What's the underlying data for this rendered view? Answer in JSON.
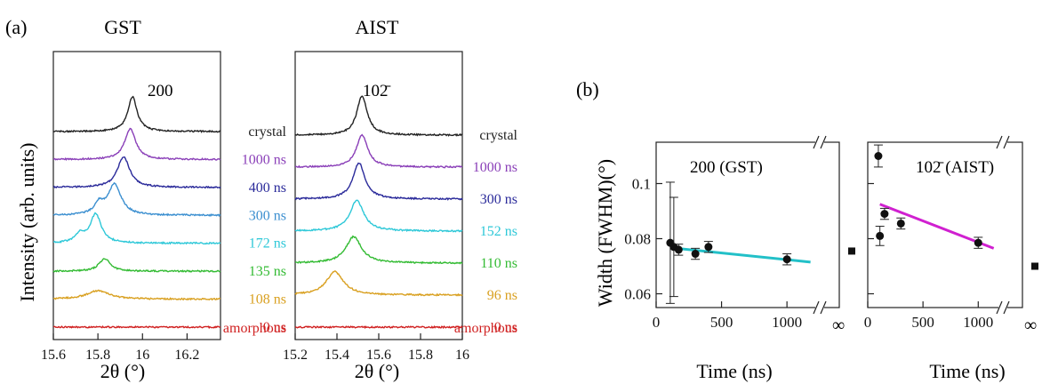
{
  "figure": {
    "panel_a_label": "(a)",
    "panel_b_label": "(b)"
  },
  "chart_data": [
    {
      "type": "line",
      "title": "GST",
      "peak_label": "200",
      "xlabel": "2θ (°)",
      "ylabel": "Intensity (arb. units)",
      "xlim": [
        15.6,
        16.35
      ],
      "xticks": [
        "15.6",
        "15.8",
        "16",
        "16.2"
      ],
      "xtick_values": [
        15.6,
        15.8,
        16.0,
        16.2
      ],
      "bottom_note": "amorphous",
      "series": [
        {
          "name": "crystal",
          "color": "#222222",
          "peak": 15.955,
          "height": 0.82,
          "width": 0.025,
          "lead": 0,
          "shoulder": 0
        },
        {
          "name": "1000 ns",
          "color": "#8a3fb8",
          "peak": 15.945,
          "height": 0.72,
          "width": 0.03,
          "lead": 0,
          "shoulder": 0
        },
        {
          "name": "400 ns",
          "color": "#2a2a9a",
          "peak": 15.915,
          "height": 0.72,
          "width": 0.033,
          "lead": 0,
          "shoulder": 0
        },
        {
          "name": "300 ns",
          "color": "#3b8fd0",
          "peak": 15.875,
          "height": 0.72,
          "width": 0.035,
          "lead": 0,
          "shoulder": 0.25
        },
        {
          "name": "172 ns",
          "color": "#2ec8d8",
          "peak": 15.79,
          "height": 0.68,
          "width": 0.03,
          "lead": 0,
          "shoulder": 0.2
        },
        {
          "name": "135 ns",
          "color": "#33bb33",
          "peak": 15.83,
          "height": 0.3,
          "width": 0.03,
          "lead": 0,
          "shoulder": 0
        },
        {
          "name": "108 ns",
          "color": "#d9a020",
          "peak": 15.8,
          "height": 0.2,
          "width": 0.06,
          "lead": 0,
          "shoulder": 0
        },
        {
          "name": "0 ns",
          "color": "#d02020",
          "peak": 15.9,
          "height": 0.0,
          "width": 0.05,
          "lead": 0,
          "shoulder": 0
        }
      ]
    },
    {
      "type": "line",
      "title": "AIST",
      "peak_label": "102̄",
      "xlabel": "2θ (°)",
      "xlim": [
        15.2,
        16.0
      ],
      "xticks": [
        "15.2",
        "15.4",
        "15.6",
        "15.8",
        "16"
      ],
      "xtick_values": [
        15.2,
        15.4,
        15.6,
        15.8,
        16.0
      ],
      "bottom_note": "amorphous",
      "series": [
        {
          "name": "crystal",
          "color": "#222222",
          "peak": 15.52,
          "height": 0.92,
          "width": 0.03,
          "lead": 0,
          "shoulder": 0
        },
        {
          "name": "1000 ns",
          "color": "#8a3fb8",
          "peak": 15.52,
          "height": 0.75,
          "width": 0.033,
          "lead": 0,
          "shoulder": 0
        },
        {
          "name": "300 ns",
          "color": "#2a2a9a",
          "peak": 15.505,
          "height": 0.85,
          "width": 0.035,
          "lead": 0,
          "shoulder": 0
        },
        {
          "name": "152 ns",
          "color": "#2ec8d8",
          "peak": 15.495,
          "height": 0.72,
          "width": 0.04,
          "lead": 0,
          "shoulder": 0
        },
        {
          "name": "110 ns",
          "color": "#33bb33",
          "peak": 15.48,
          "height": 0.62,
          "width": 0.045,
          "lead": 0,
          "shoulder": 0
        },
        {
          "name": "96 ns",
          "color": "#d9a020",
          "peak": 15.39,
          "height": 0.55,
          "width": 0.05,
          "lead": 0,
          "shoulder": 0
        },
        {
          "name": "0 ns",
          "color": "#d02020",
          "peak": 15.5,
          "height": 0.0,
          "width": 0.05,
          "lead": 0,
          "shoulder": 0
        }
      ]
    },
    {
      "type": "scatter",
      "annotation": "200 (GST)",
      "xlabel": "Time (ns)",
      "ylabel": "Width (FWHM)(°)",
      "xlim": [
        0,
        1400
      ],
      "ylim": [
        0.055,
        0.115
      ],
      "xticks": [
        "0",
        "500",
        "1000"
      ],
      "xtick_values": [
        0,
        500,
        1000
      ],
      "yticks": [
        "0.06",
        "0.08",
        "0.1"
      ],
      "ytick_values": [
        0.06,
        0.08,
        0.1
      ],
      "infinity_label": "∞",
      "points": [
        {
          "x": 108,
          "y": 0.0785,
          "err": 0.022
        },
        {
          "x": 135,
          "y": 0.077,
          "err": 0.018
        },
        {
          "x": 172,
          "y": 0.076,
          "err": 0.002
        },
        {
          "x": 300,
          "y": 0.0745,
          "err": 0.002
        },
        {
          "x": 400,
          "y": 0.077,
          "err": 0.002
        },
        {
          "x": 1000,
          "y": 0.0725,
          "err": 0.002
        }
      ],
      "infinity_point": {
        "y": 0.0755
      },
      "fit": {
        "x": [
          150,
          1180
        ],
        "y": [
          0.0765,
          0.0715
        ],
        "color": "#22c0c8"
      }
    },
    {
      "type": "scatter",
      "annotation": "102̄ (AIST)",
      "xlabel": "Time (ns)",
      "xlim": [
        0,
        1400
      ],
      "ylim": [
        0.055,
        0.115
      ],
      "xticks": [
        "0",
        "500",
        "1000"
      ],
      "xtick_values": [
        0,
        500,
        1000
      ],
      "infinity_label": "∞",
      "points": [
        {
          "x": 96,
          "y": 0.11,
          "err": 0.004
        },
        {
          "x": 110,
          "y": 0.081,
          "err": 0.0035
        },
        {
          "x": 152,
          "y": 0.089,
          "err": 0.002
        },
        {
          "x": 300,
          "y": 0.0855,
          "err": 0.002
        },
        {
          "x": 1000,
          "y": 0.0785,
          "err": 0.002
        }
      ],
      "infinity_point": {
        "y": 0.07
      },
      "fit": {
        "x": [
          110,
          1140
        ],
        "y": [
          0.0925,
          0.0765
        ],
        "color": "#d020d0"
      }
    }
  ]
}
